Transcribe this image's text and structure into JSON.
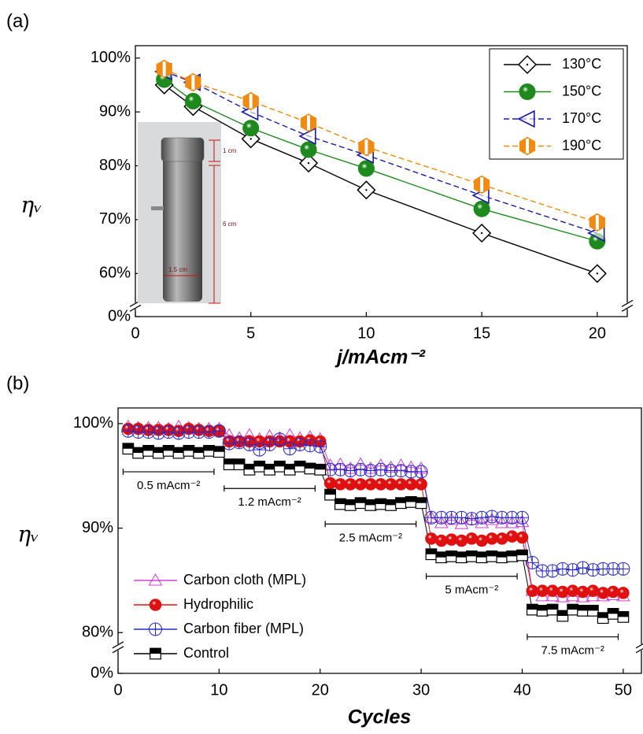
{
  "chart_data": [
    {
      "type": "line",
      "panel_label": "(a)",
      "xlabel": "j/mAcm⁻²",
      "ylabel": "ηᵥ",
      "x": [
        1.25,
        2.5,
        5,
        7.5,
        10,
        15,
        20
      ],
      "xlim": [
        0,
        21.3
      ],
      "xticks": [
        0,
        5,
        10,
        15,
        20
      ],
      "ylim": [
        0,
        102.3
      ],
      "ybreak": [
        2,
        54
      ],
      "yticks": [
        {
          "value": 0,
          "label": "0%"
        },
        {
          "value": 60,
          "label": "60%"
        },
        {
          "value": 70,
          "label": "70%"
        },
        {
          "value": 80,
          "label": "80%"
        },
        {
          "value": 90,
          "label": "90%"
        },
        {
          "value": 100,
          "label": "100%"
        }
      ],
      "legend": "upper right",
      "annotations": [
        "1 cm",
        "6 cm",
        "1.5 cm"
      ],
      "series": [
        {
          "name": "130°C",
          "color": "#000000",
          "marker": "diamond",
          "dash": false,
          "values": [
            95,
            91,
            85,
            80.5,
            75.5,
            67.5,
            60
          ]
        },
        {
          "name": "150°C",
          "color": "#1e8a1e",
          "marker": "sphere",
          "dash": false,
          "values": [
            96,
            92,
            87,
            83,
            79.5,
            72,
            66
          ]
        },
        {
          "name": "170°C",
          "color": "#1a1aa8",
          "marker": "tri-left",
          "dash": true,
          "values": [
            97.5,
            95.5,
            90,
            85.5,
            82,
            74.5,
            67.5
          ]
        },
        {
          "name": "190°C",
          "color": "#f08a10",
          "marker": "hex-half",
          "dash": true,
          "values": [
            98,
            95.5,
            92,
            88,
            83.5,
            76.5,
            69.5
          ]
        }
      ]
    },
    {
      "type": "line",
      "panel_label": "(b)",
      "xlabel": "Cycles",
      "ylabel": "ηᵥ",
      "x": [
        1,
        2,
        3,
        4,
        5,
        6,
        7,
        8,
        9,
        10,
        11,
        12,
        13,
        14,
        15,
        16,
        17,
        18,
        19,
        20,
        21,
        22,
        23,
        24,
        25,
        26,
        27,
        28,
        29,
        30,
        31,
        32,
        33,
        34,
        35,
        36,
        37,
        38,
        39,
        40,
        41,
        42,
        43,
        44,
        45,
        46,
        47,
        48,
        49,
        50
      ],
      "xlim": [
        0,
        51.8
      ],
      "xticks": [
        0,
        10,
        20,
        30,
        40,
        50
      ],
      "ylim": [
        0,
        101.5
      ],
      "ybreak": [
        2.5,
        78.6
      ],
      "yticks": [
        {
          "value": 0,
          "label": "0%"
        },
        {
          "value": 80,
          "label": "80%"
        },
        {
          "value": 90,
          "label": "90%"
        },
        {
          "value": 100,
          "label": "100%"
        }
      ],
      "legend": "lower left",
      "annotations": [
        "0.5 mAcm⁻²",
        "1.2 mAcm⁻²",
        "2.5 mAcm⁻²",
        "5 mAcm⁻²",
        "7.5 mAcm⁻²"
      ],
      "series": [
        {
          "name": "Carbon cloth (MPL)",
          "color": "#d040d0",
          "marker": "tri-up",
          "dash": false,
          "values": [
            99.7,
            99.6,
            99.6,
            99.6,
            99.5,
            99.7,
            99.6,
            99.5,
            99.5,
            99.5,
            98.9,
            98.6,
            98.9,
            98.5,
            98.8,
            98.6,
            98.9,
            98.6,
            98.7,
            98.5,
            96.0,
            96.1,
            95.7,
            96.1,
            95.7,
            96.0,
            95.8,
            96.0,
            95.8,
            95.7,
            91.0,
            90.5,
            90.8,
            90.4,
            90.8,
            90.5,
            90.8,
            90.5,
            90.5,
            90.6,
            84.0,
            83.5,
            83.5,
            83.4,
            83.5,
            83.4,
            83.5,
            83.5,
            83.6,
            83.5
          ]
        },
        {
          "name": "Hydrophilic",
          "color": "#e01010",
          "marker": "sphere",
          "dash": false,
          "values": [
            99.5,
            99.5,
            99.4,
            99.4,
            99.4,
            99.3,
            99.5,
            99.4,
            99.3,
            99.3,
            98.3,
            98.3,
            98.3,
            98.3,
            98.3,
            98.3,
            98.3,
            98.3,
            98.4,
            98.3,
            94.3,
            94.2,
            94.2,
            94.2,
            94.2,
            94.2,
            94.2,
            94.2,
            94.2,
            94.2,
            89.0,
            88.8,
            88.9,
            88.8,
            89.0,
            88.8,
            89.0,
            89.0,
            89.2,
            89.1,
            84.0,
            84.0,
            84.0,
            83.9,
            84.0,
            83.9,
            84.0,
            83.8,
            83.9,
            83.8
          ]
        },
        {
          "name": "Carbon fiber (MPL)",
          "color": "#2828c8",
          "marker": "circle-cross",
          "dash": false,
          "values": [
            99.3,
            99.2,
            99.2,
            99.1,
            99.2,
            99.1,
            99.2,
            99.2,
            99.2,
            99.3,
            98.1,
            98.2,
            98.0,
            97.5,
            98.0,
            98.5,
            97.6,
            98.0,
            97.9,
            97.8,
            95.6,
            95.6,
            95.5,
            95.6,
            95.5,
            95.6,
            95.5,
            95.5,
            95.4,
            95.4,
            91.0,
            91.0,
            91.0,
            91.0,
            90.9,
            91.0,
            91.1,
            91.0,
            91.0,
            91.0,
            86.7,
            85.9,
            85.9,
            86.1,
            86.0,
            86.2,
            86.0,
            86.1,
            86.1,
            86.1
          ]
        },
        {
          "name": "Control",
          "color": "#000000",
          "marker": "square-half",
          "dash": false,
          "values": [
            97.6,
            97.2,
            97.4,
            97.2,
            97.4,
            97.2,
            97.4,
            97.2,
            97.4,
            97.3,
            96.1,
            96.1,
            95.6,
            95.9,
            95.6,
            95.9,
            95.6,
            95.9,
            95.7,
            95.6,
            93.2,
            92.3,
            92.2,
            92.4,
            92.2,
            92.3,
            92.2,
            92.4,
            92.5,
            92.4,
            87.5,
            87.2,
            87.3,
            87.2,
            87.3,
            87.2,
            87.3,
            87.2,
            87.3,
            87.4,
            82.2,
            82.1,
            82.2,
            81.6,
            82.2,
            82.1,
            82.1,
            81.4,
            81.8,
            81.5
          ]
        }
      ]
    }
  ]
}
